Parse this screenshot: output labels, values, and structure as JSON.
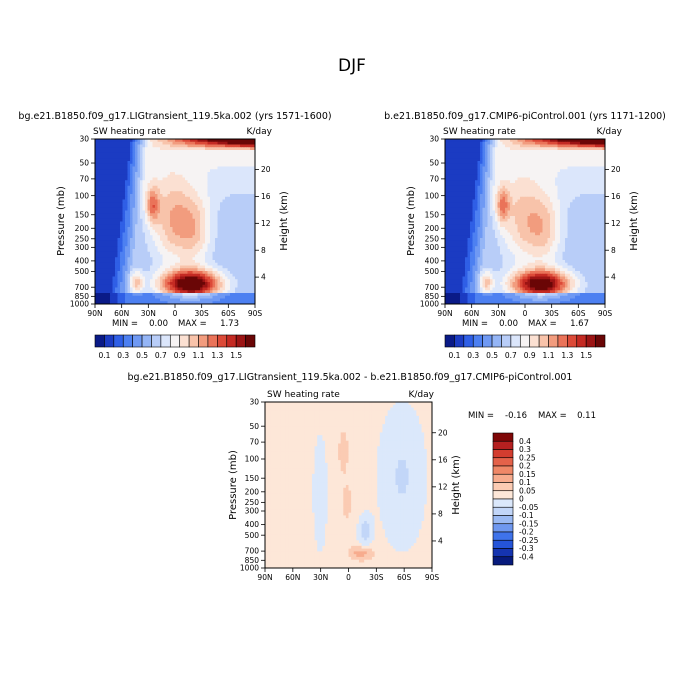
{
  "title": "DJF",
  "colors": {
    "pos_scale": [
      "#f3f3fb",
      "#fde5d6",
      "#fbcdb4",
      "#f7ae8f",
      "#f08b6c",
      "#e3614b",
      "#d23a2e",
      "#b71f1f",
      "#8f0f0f",
      "#680505"
    ],
    "abs_scale": [
      "#0a1a87",
      "#1b3bc2",
      "#2f5fe6",
      "#4d80f1",
      "#6f99f3",
      "#94b5f6",
      "#b8cdf8",
      "#dbe6fb",
      "#f6f3f3",
      "#fbe0d2",
      "#f8c3aa",
      "#f29c7e",
      "#ea7359",
      "#dc4a38",
      "#c42a23",
      "#9c1414",
      "#6a0606"
    ],
    "diff_scale": [
      "#071a7c",
      "#1534b0",
      "#2554d8",
      "#3f73ea",
      "#6f98ef",
      "#9bbaf3",
      "#c2d6f8",
      "#dbe8fb",
      "#fde7d8",
      "#fbcbb3",
      "#f7ac8e",
      "#ef8868",
      "#e4624a",
      "#d33d2f",
      "#b52020",
      "#7f0707"
    ]
  },
  "chart_data": [
    {
      "type": "heatmap",
      "panel": "left",
      "title": "bg.e21.B1850.f09_g17.LIGtransient_119.5ka.002 (yrs 1571-1600)",
      "variable": "SW heating rate",
      "units": "K/day",
      "ylabel": "Pressure (mb)",
      "ylabel_right": "Height (km)",
      "x_ticks": [
        "90N",
        "60N",
        "30N",
        "0",
        "30S",
        "60S",
        "90S"
      ],
      "y_ticks": [
        1000,
        850,
        700,
        500,
        400,
        300,
        250,
        200,
        150,
        100,
        70,
        50,
        30
      ],
      "y_ticks_right": [
        4,
        8,
        12,
        16,
        20
      ],
      "stats": {
        "min_label": "MIN =",
        "min": "0.00",
        "max_label": "MAX =",
        "max": "1.73"
      },
      "colorbar": {
        "labels": [
          "0.1",
          "0.3",
          "0.5",
          "0.7",
          "0.9",
          "1.1",
          "1.3",
          "1.5"
        ],
        "levels": [
          0.1,
          0.2,
          0.3,
          0.4,
          0.5,
          0.6,
          0.7,
          0.8,
          0.9,
          1.0,
          1.1,
          1.2,
          1.3,
          1.4,
          1.5
        ]
      },
      "features": {
        "south_max": 1.73,
        "band_peak": 0.9,
        "upper_max": 1.5
      }
    },
    {
      "type": "heatmap",
      "panel": "right",
      "title": "b.e21.B1850.f09_g17.CMIP6-piControl.001 (yrs 1171-1200)",
      "variable": "SW heating rate",
      "units": "K/day",
      "ylabel": "Pressure (mb)",
      "ylabel_right": "Height (km)",
      "x_ticks": [
        "90N",
        "60N",
        "30N",
        "0",
        "30S",
        "60S",
        "90S"
      ],
      "y_ticks": [
        1000,
        850,
        700,
        500,
        400,
        300,
        250,
        200,
        150,
        100,
        70,
        50,
        30
      ],
      "y_ticks_right": [
        4,
        8,
        12,
        16,
        20
      ],
      "stats": {
        "min_label": "MIN =",
        "min": "0.00",
        "max_label": "MAX =",
        "max": "1.67"
      },
      "colorbar": {
        "labels": [
          "0.1",
          "0.3",
          "0.5",
          "0.7",
          "0.9",
          "1.1",
          "1.3",
          "1.5"
        ],
        "levels": [
          0.1,
          0.2,
          0.3,
          0.4,
          0.5,
          0.6,
          0.7,
          0.8,
          0.9,
          1.0,
          1.1,
          1.2,
          1.3,
          1.4,
          1.5
        ]
      },
      "features": {
        "south_max": 1.67,
        "band_peak": 0.85,
        "upper_max": 1.45
      }
    },
    {
      "type": "heatmap",
      "panel": "difference",
      "title": "bg.e21.B1850.f09_g17.LIGtransient_119.5ka.002 - b.e21.B1850.f09_g17.CMIP6-piControl.001",
      "variable": "SW heating rate",
      "units": "K/day",
      "ylabel": "Pressure (mb)",
      "ylabel_right": "Height (km)",
      "x_ticks": [
        "90N",
        "60N",
        "30N",
        "0",
        "30S",
        "60S",
        "90S"
      ],
      "y_ticks": [
        1000,
        850,
        700,
        500,
        400,
        300,
        250,
        200,
        150,
        100,
        70,
        50,
        30
      ],
      "y_ticks_right": [
        4,
        8,
        12,
        16,
        20
      ],
      "stats": {
        "min_label": "MIN =",
        "min": "-0.16",
        "max_label": "MAX =",
        "max": "0.11"
      },
      "colorbar": {
        "labels": [
          "0.4",
          "0.3",
          "0.25",
          "0.2",
          "0.15",
          "0.1",
          "0.05",
          "0",
          "-0.05",
          "-0.1",
          "-0.15",
          "-0.2",
          "-0.25",
          "-0.3",
          "-0.4"
        ],
        "levels": [
          -0.4,
          -0.3,
          -0.25,
          -0.2,
          -0.15,
          -0.1,
          -0.05,
          0,
          0.05,
          0.1,
          0.15,
          0.2,
          0.25,
          0.3,
          0.4
        ]
      }
    }
  ]
}
